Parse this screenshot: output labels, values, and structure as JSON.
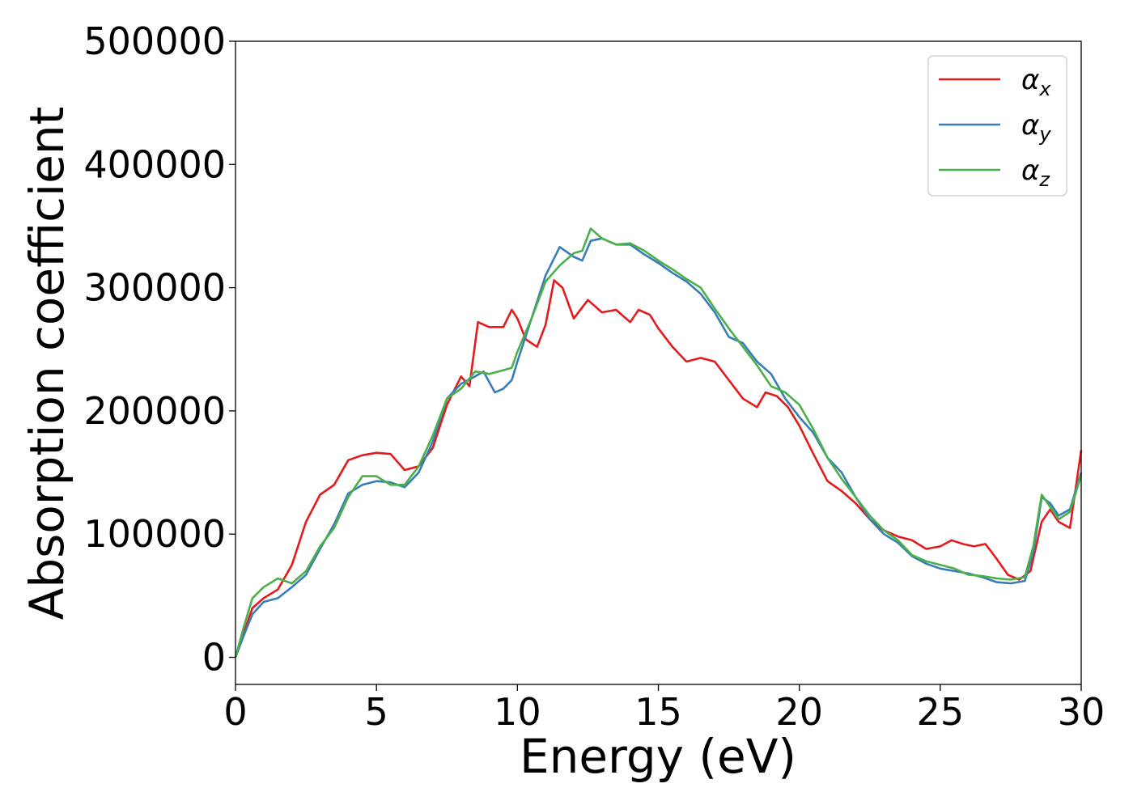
{
  "chart_data": {
    "type": "line",
    "title": "",
    "xlabel": "Energy (eV)",
    "ylabel": "Absorption coefficient",
    "xlim": [
      0,
      30
    ],
    "ylim": [
      -22000,
      500000
    ],
    "x_ticks": [
      0,
      5,
      10,
      15,
      20,
      25,
      30
    ],
    "y_ticks": [
      0,
      100000,
      200000,
      300000,
      400000,
      500000
    ],
    "grid": false,
    "legend_position": "top-right",
    "series": [
      {
        "name": "αx",
        "symbol": "α",
        "subscript": "x",
        "color": "#e41a1c",
        "points": [
          [
            0,
            0
          ],
          [
            0.3,
            20000
          ],
          [
            0.6,
            40000
          ],
          [
            1,
            48000
          ],
          [
            1.5,
            55000
          ],
          [
            2,
            75000
          ],
          [
            2.5,
            110000
          ],
          [
            3,
            132000
          ],
          [
            3.5,
            140000
          ],
          [
            4,
            160000
          ],
          [
            4.5,
            164000
          ],
          [
            5,
            166000
          ],
          [
            5.5,
            165000
          ],
          [
            6,
            152000
          ],
          [
            6.5,
            155000
          ],
          [
            7,
            170000
          ],
          [
            7.5,
            205000
          ],
          [
            8,
            228000
          ],
          [
            8.3,
            220000
          ],
          [
            8.6,
            272000
          ],
          [
            9,
            268000
          ],
          [
            9.5,
            268000
          ],
          [
            9.8,
            282000
          ],
          [
            10,
            275000
          ],
          [
            10.3,
            258000
          ],
          [
            10.7,
            252000
          ],
          [
            11,
            270000
          ],
          [
            11.3,
            306000
          ],
          [
            11.6,
            300000
          ],
          [
            12,
            275000
          ],
          [
            12.5,
            290000
          ],
          [
            13,
            280000
          ],
          [
            13.5,
            282000
          ],
          [
            14,
            272000
          ],
          [
            14.3,
            282000
          ],
          [
            14.7,
            278000
          ],
          [
            15,
            267000
          ],
          [
            15.5,
            252000
          ],
          [
            16,
            240000
          ],
          [
            16.5,
            243000
          ],
          [
            17,
            240000
          ],
          [
            17.5,
            225000
          ],
          [
            18,
            210000
          ],
          [
            18.5,
            203000
          ],
          [
            18.8,
            215000
          ],
          [
            19.2,
            212000
          ],
          [
            19.6,
            203000
          ],
          [
            20,
            188000
          ],
          [
            20.5,
            165000
          ],
          [
            21,
            143000
          ],
          [
            21.5,
            135000
          ],
          [
            22,
            125000
          ],
          [
            22.5,
            112000
          ],
          [
            23,
            103000
          ],
          [
            23.5,
            98000
          ],
          [
            24,
            95000
          ],
          [
            24.5,
            88000
          ],
          [
            25,
            90000
          ],
          [
            25.4,
            95000
          ],
          [
            25.8,
            92000
          ],
          [
            26.2,
            90000
          ],
          [
            26.6,
            92000
          ],
          [
            27,
            80000
          ],
          [
            27.4,
            67000
          ],
          [
            27.8,
            63000
          ],
          [
            28.2,
            70000
          ],
          [
            28.6,
            110000
          ],
          [
            28.9,
            120000
          ],
          [
            29.2,
            110000
          ],
          [
            29.6,
            105000
          ],
          [
            30,
            168000
          ]
        ]
      },
      {
        "name": "αy",
        "symbol": "α",
        "subscript": "y",
        "color": "#377eb8",
        "points": [
          [
            0,
            0
          ],
          [
            0.3,
            18000
          ],
          [
            0.6,
            35000
          ],
          [
            1,
            45000
          ],
          [
            1.5,
            48000
          ],
          [
            2,
            57000
          ],
          [
            2.5,
            67000
          ],
          [
            3,
            88000
          ],
          [
            3.5,
            108000
          ],
          [
            4,
            133000
          ],
          [
            4.5,
            140000
          ],
          [
            5,
            143000
          ],
          [
            5.5,
            142000
          ],
          [
            6,
            138000
          ],
          [
            6.5,
            150000
          ],
          [
            7,
            175000
          ],
          [
            7.5,
            210000
          ],
          [
            8,
            222000
          ],
          [
            8.5,
            228000
          ],
          [
            8.8,
            232000
          ],
          [
            9.2,
            215000
          ],
          [
            9.5,
            218000
          ],
          [
            9.8,
            225000
          ],
          [
            10,
            240000
          ],
          [
            10.5,
            275000
          ],
          [
            11,
            310000
          ],
          [
            11.5,
            333000
          ],
          [
            12,
            325000
          ],
          [
            12.3,
            322000
          ],
          [
            12.6,
            338000
          ],
          [
            13,
            340000
          ],
          [
            13.5,
            335000
          ],
          [
            14,
            335000
          ],
          [
            14.5,
            327000
          ],
          [
            15,
            320000
          ],
          [
            15.5,
            312000
          ],
          [
            16,
            305000
          ],
          [
            16.5,
            295000
          ],
          [
            17,
            280000
          ],
          [
            17.5,
            260000
          ],
          [
            18,
            255000
          ],
          [
            18.5,
            240000
          ],
          [
            19,
            230000
          ],
          [
            19.5,
            210000
          ],
          [
            20,
            195000
          ],
          [
            20.5,
            182000
          ],
          [
            21,
            162000
          ],
          [
            21.5,
            150000
          ],
          [
            22,
            130000
          ],
          [
            22.5,
            112000
          ],
          [
            23,
            100000
          ],
          [
            23.5,
            93000
          ],
          [
            24,
            82000
          ],
          [
            24.5,
            76000
          ],
          [
            25,
            72000
          ],
          [
            25.5,
            70000
          ],
          [
            26,
            68000
          ],
          [
            26.5,
            65000
          ],
          [
            27,
            61000
          ],
          [
            27.5,
            60000
          ],
          [
            28,
            62000
          ],
          [
            28.3,
            85000
          ],
          [
            28.6,
            130000
          ],
          [
            28.9,
            125000
          ],
          [
            29.2,
            115000
          ],
          [
            29.6,
            120000
          ],
          [
            30,
            150000
          ]
        ]
      },
      {
        "name": "αz",
        "symbol": "α",
        "subscript": "z",
        "color": "#4daf4a",
        "points": [
          [
            0,
            0
          ],
          [
            0.3,
            25000
          ],
          [
            0.6,
            48000
          ],
          [
            1,
            57000
          ],
          [
            1.5,
            64000
          ],
          [
            2,
            60000
          ],
          [
            2.5,
            70000
          ],
          [
            3,
            90000
          ],
          [
            3.5,
            105000
          ],
          [
            4,
            130000
          ],
          [
            4.5,
            147000
          ],
          [
            5,
            147000
          ],
          [
            5.5,
            140000
          ],
          [
            6,
            140000
          ],
          [
            6.5,
            155000
          ],
          [
            7,
            180000
          ],
          [
            7.5,
            210000
          ],
          [
            8,
            218000
          ],
          [
            8.5,
            232000
          ],
          [
            9,
            230000
          ],
          [
            9.5,
            233000
          ],
          [
            9.8,
            235000
          ],
          [
            10,
            248000
          ],
          [
            10.5,
            275000
          ],
          [
            11,
            305000
          ],
          [
            11.5,
            318000
          ],
          [
            12,
            328000
          ],
          [
            12.3,
            330000
          ],
          [
            12.6,
            348000
          ],
          [
            13,
            340000
          ],
          [
            13.5,
            335000
          ],
          [
            14,
            336000
          ],
          [
            14.5,
            330000
          ],
          [
            15,
            322000
          ],
          [
            15.5,
            315000
          ],
          [
            16,
            307000
          ],
          [
            16.5,
            300000
          ],
          [
            17,
            283000
          ],
          [
            17.5,
            267000
          ],
          [
            18,
            252000
          ],
          [
            18.5,
            237000
          ],
          [
            19,
            220000
          ],
          [
            19.5,
            215000
          ],
          [
            20,
            205000
          ],
          [
            20.5,
            185000
          ],
          [
            21,
            162000
          ],
          [
            21.5,
            145000
          ],
          [
            22,
            130000
          ],
          [
            22.5,
            115000
          ],
          [
            23,
            103000
          ],
          [
            23.5,
            95000
          ],
          [
            24,
            83000
          ],
          [
            24.5,
            78000
          ],
          [
            25,
            75000
          ],
          [
            25.5,
            72000
          ],
          [
            26,
            67000
          ],
          [
            26.5,
            66000
          ],
          [
            27,
            64000
          ],
          [
            27.5,
            63000
          ],
          [
            28,
            65000
          ],
          [
            28.3,
            90000
          ],
          [
            28.6,
            132000
          ],
          [
            28.9,
            122000
          ],
          [
            29.2,
            112000
          ],
          [
            29.6,
            118000
          ],
          [
            30,
            148000
          ]
        ]
      }
    ]
  }
}
